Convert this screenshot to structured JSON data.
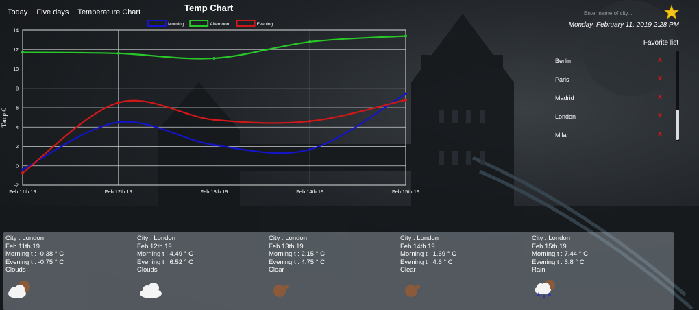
{
  "nav": [
    "Today",
    "Five days",
    "Temperature Chart"
  ],
  "chart_title": "Temp Chart",
  "search": {
    "placeholder": "Enter name of city..."
  },
  "datetime": "Monday, February 11, 2019 2:28 PM",
  "favorites": {
    "title": "Favorite list",
    "cities": [
      "Berlin",
      "Paris",
      "Madrid",
      "London",
      "Milan"
    ],
    "delete_glyph": "x"
  },
  "chart_data": {
    "type": "line",
    "title": "Temp Chart",
    "categories": [
      "Feb 11th 19",
      "Feb 12th 19",
      "Feb 13th 19",
      "Feb 14th 19",
      "Feb 15th 19"
    ],
    "ylabel": "Temp C",
    "ylim": [
      -2,
      14
    ],
    "yticks": [
      -2,
      0,
      2,
      4,
      6,
      8,
      10,
      12,
      14
    ],
    "legend_position": "top",
    "series": [
      {
        "name": "Morning",
        "color": "#1414c8",
        "values": [
          -0.38,
          4.49,
          2.15,
          1.69,
          7.44
        ]
      },
      {
        "name": "Afternoon",
        "color": "#28c828",
        "values": [
          11.7,
          11.6,
          11.1,
          12.8,
          13.4
        ]
      },
      {
        "name": "Evening",
        "color": "#d01818",
        "values": [
          -0.75,
          6.52,
          4.75,
          4.6,
          6.8
        ]
      }
    ]
  },
  "forecast": [
    {
      "city": "City : London",
      "date": "Feb 11th 19",
      "morning": "Morning t : -0.38 ° C",
      "evening": "Evening t : -0.75 ° C",
      "desc": "Clouds",
      "icon": "cloud-sun-icon"
    },
    {
      "city": "City : London",
      "date": "Feb 12th 19",
      "morning": "Morning t : 4.49 ° C",
      "evening": "Evening t : 6.52 ° C",
      "desc": "Clouds",
      "icon": "cloud-icon"
    },
    {
      "city": "City : London",
      "date": "Feb 13th 19",
      "morning": "Morning t : 2.15 ° C",
      "evening": "Evening t : 4.75 ° C",
      "desc": "Clear",
      "icon": "sun-icon"
    },
    {
      "city": "City : London",
      "date": "Feb 14th 19",
      "morning": "Morning t : 1.69 ° C",
      "evening": "Evening t : 4.6 ° C",
      "desc": "Clear",
      "icon": "sun-icon"
    },
    {
      "city": "City : London",
      "date": "Feb 15th 19",
      "morning": "Morning t : 7.44 ° C",
      "evening": "Evening t : 6.8 ° C",
      "desc": "Rain",
      "icon": "rain-icon"
    }
  ]
}
